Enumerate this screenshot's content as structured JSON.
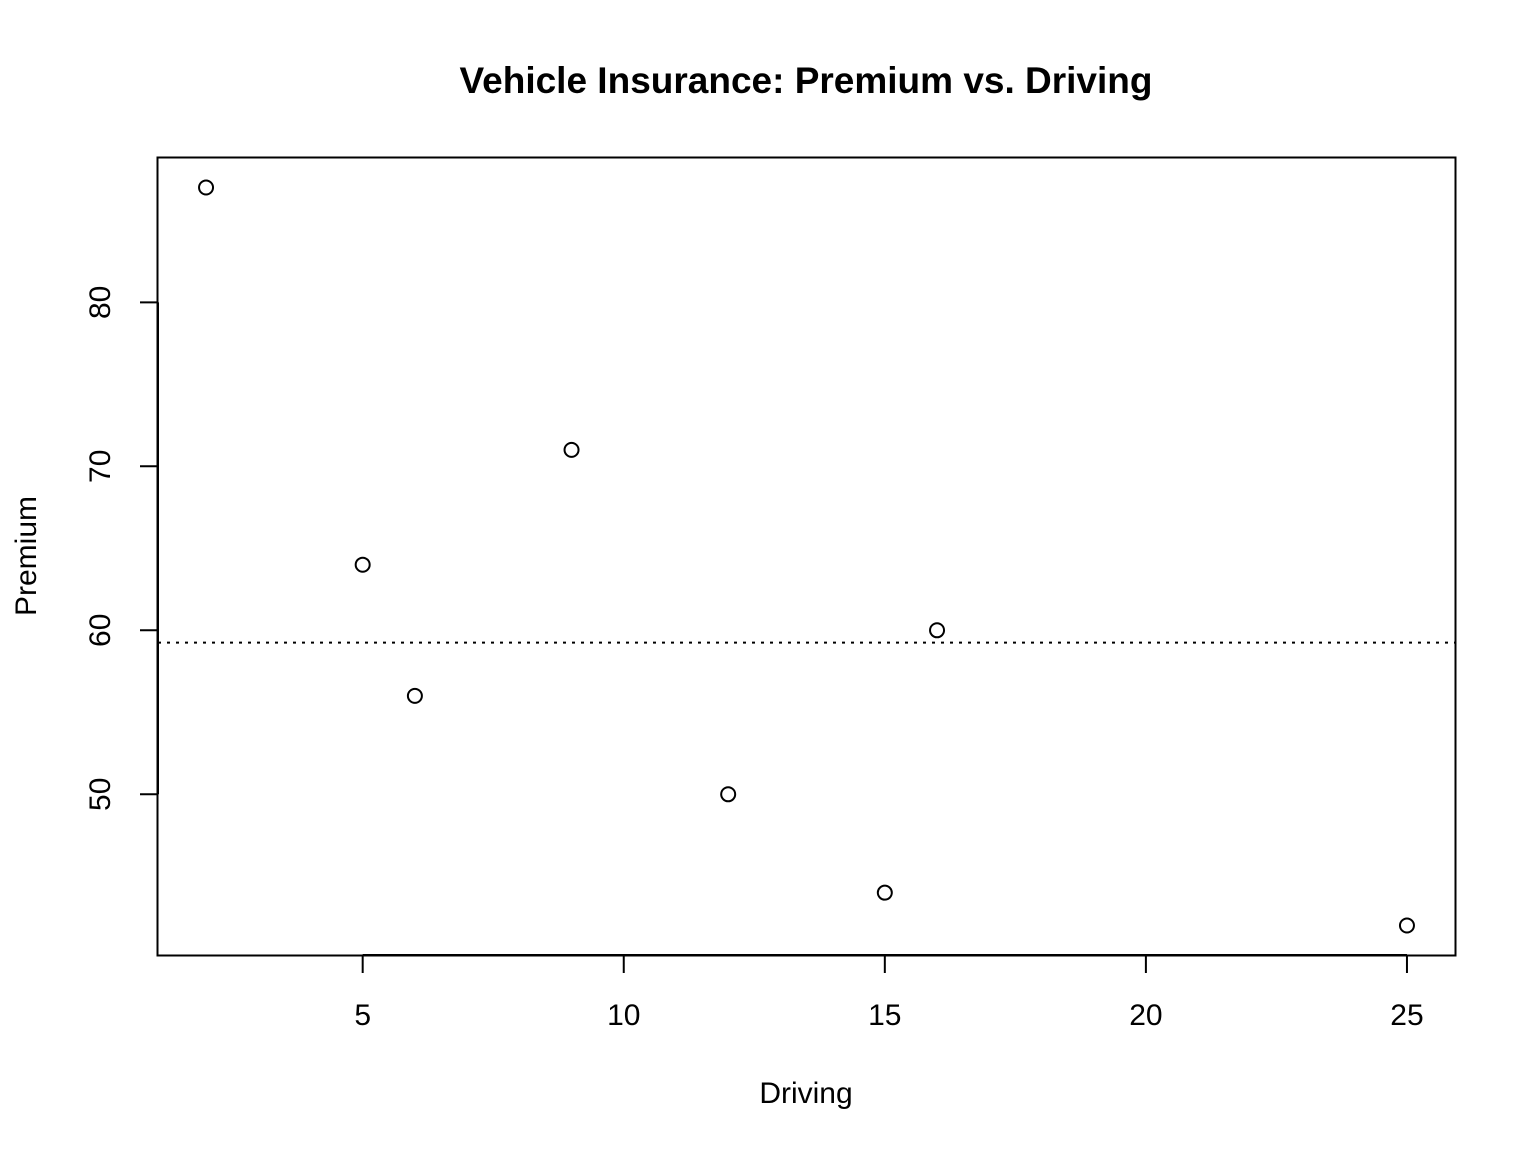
{
  "chart_data": {
    "type": "scatter",
    "title": "Vehicle Insurance: Premium vs. Driving",
    "xlabel": "Driving",
    "ylabel": "Premium",
    "xlim": [
      1.08,
      25.92
    ],
    "ylim": [
      40.2,
      88.8
    ],
    "x_ticks": [
      5,
      10,
      15,
      20,
      25
    ],
    "y_ticks": [
      50,
      60,
      70,
      80
    ],
    "grid": false,
    "legend": "none",
    "points": [
      {
        "x": 2,
        "y": 87
      },
      {
        "x": 5,
        "y": 64
      },
      {
        "x": 6,
        "y": 56
      },
      {
        "x": 9,
        "y": 71
      },
      {
        "x": 12,
        "y": 50
      },
      {
        "x": 15,
        "y": 44
      },
      {
        "x": 16,
        "y": 60
      },
      {
        "x": 25,
        "y": 42
      }
    ],
    "reference_line": {
      "y": 59.25,
      "style": "dotted"
    },
    "colors": {
      "points": "#000000",
      "axes": "#000000",
      "background": "#ffffff"
    }
  }
}
